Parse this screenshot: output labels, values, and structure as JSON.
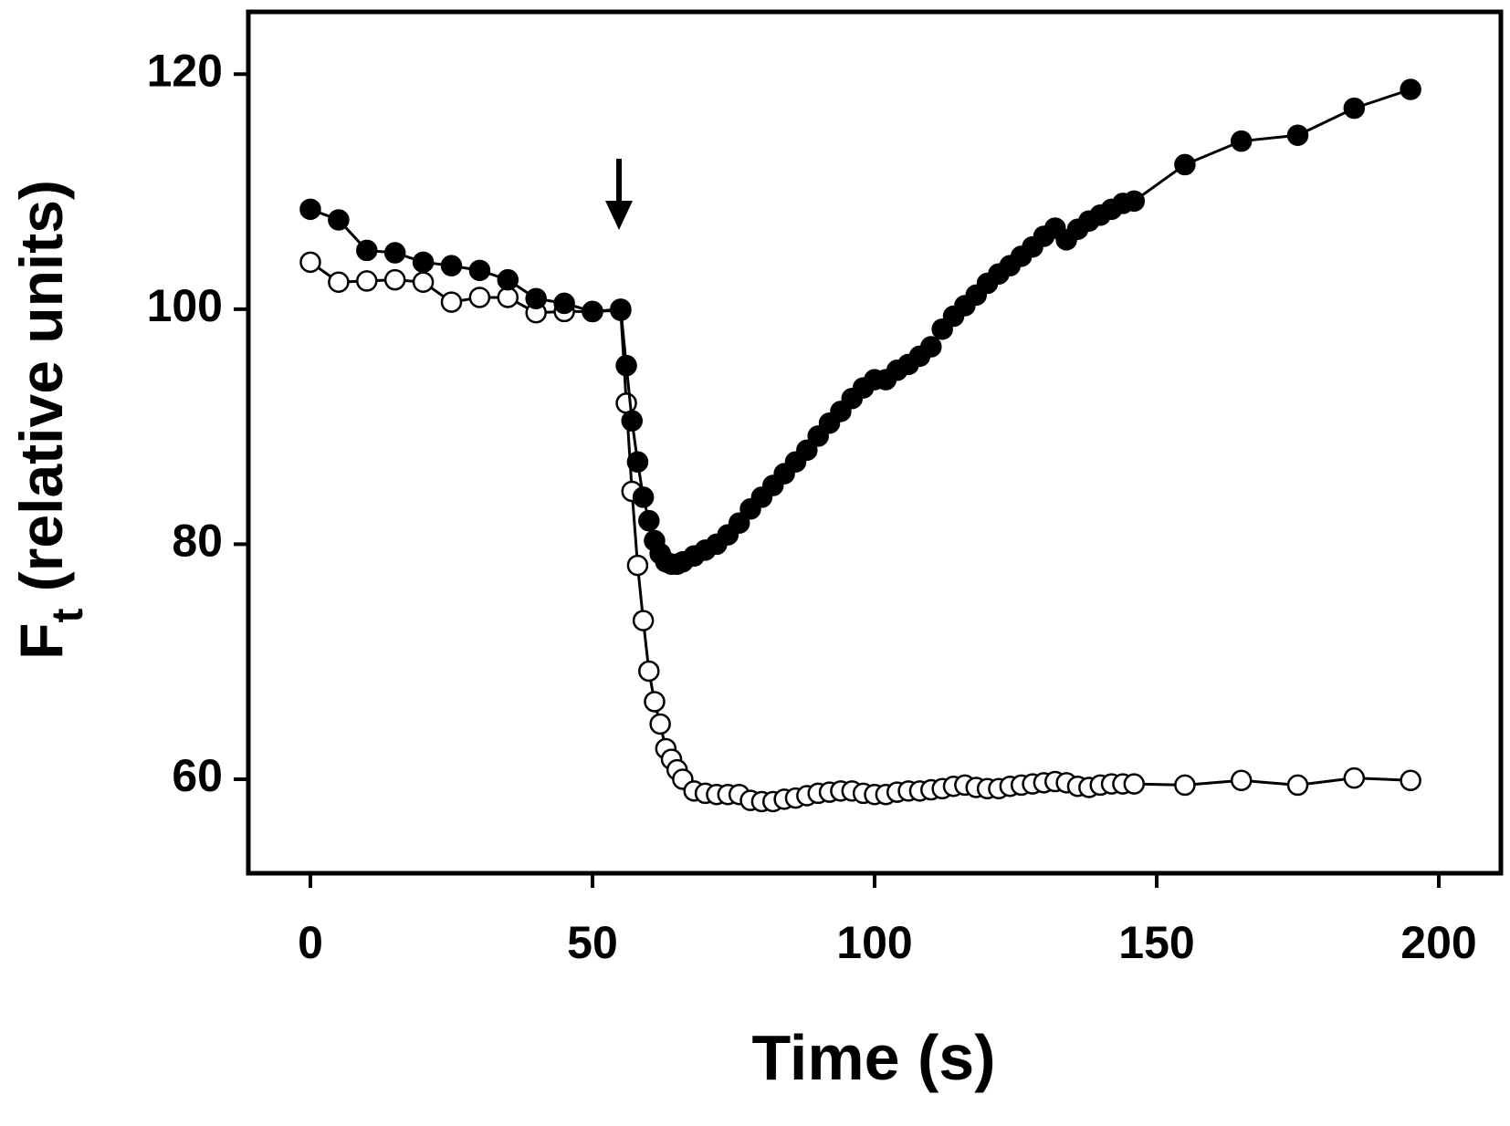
{
  "chart_data": {
    "type": "line",
    "xlabel": "Time (s)",
    "ylabel": "F",
    "ylabel_sub": "t",
    "ylabel_rest": " (relative units)",
    "x": [
      0,
      5,
      10,
      15,
      20,
      25,
      30,
      35,
      40,
      45,
      50,
      55,
      56,
      57,
      58,
      59,
      60,
      61,
      62,
      63,
      64,
      65,
      66,
      68,
      70,
      72,
      74,
      76,
      78,
      80,
      82,
      84,
      86,
      88,
      90,
      92,
      94,
      96,
      98,
      100,
      102,
      104,
      106,
      108,
      110,
      112,
      114,
      116,
      118,
      120,
      122,
      124,
      126,
      128,
      130,
      132,
      134,
      136,
      138,
      140,
      142,
      144,
      146,
      155,
      165,
      175,
      185,
      195
    ],
    "series": [
      {
        "color": "#ffffff",
        "values": [
          104,
          102.3,
          102.4,
          102.5,
          102.3,
          100.6,
          101,
          101,
          99.7,
          99.8,
          99.8,
          99.9,
          92,
          84.5,
          78.2,
          73.5,
          69.2,
          66.6,
          64.7,
          62.6,
          61.7,
          60.8,
          60,
          59,
          58.8,
          58.7,
          58.7,
          58.7,
          58.2,
          58.1,
          58.1,
          58.3,
          58.4,
          58.6,
          58.8,
          58.9,
          59,
          59,
          58.8,
          58.7,
          58.7,
          58.9,
          59,
          59,
          59.1,
          59.2,
          59.4,
          59.5,
          59.3,
          59.2,
          59.2,
          59.4,
          59.5,
          59.6,
          59.7,
          59.8,
          59.7,
          59.4,
          59.3,
          59.5,
          59.6,
          59.6,
          59.6,
          59.5,
          59.9,
          59.5,
          60.1,
          59.9
        ]
      },
      {
        "color": "#000000",
        "values": [
          108.5,
          107.6,
          105,
          104.8,
          104,
          103.7,
          103.3,
          102.5,
          100.9,
          100.5,
          99.8,
          100,
          95.2,
          90.5,
          87,
          84,
          82,
          80.3,
          79.2,
          78.5,
          78.3,
          78.3,
          78.5,
          79,
          79.5,
          80,
          80.8,
          81.8,
          83,
          84,
          85,
          86,
          87,
          88,
          89.2,
          90.3,
          91.3,
          92.4,
          93.3,
          94,
          94,
          94.8,
          95.3,
          96,
          96.8,
          98.3,
          99.4,
          100.3,
          101.2,
          102.2,
          103,
          103.7,
          104.5,
          105.3,
          106.2,
          106.9,
          105.9,
          106.8,
          107.5,
          108,
          108.5,
          109,
          109.2,
          112.3,
          114.3,
          114.8,
          117.1,
          118.7
        ]
      }
    ],
    "xlim": [
      -11,
      211
    ],
    "ylim": [
      52,
      125.3
    ],
    "xticks": [
      0,
      50,
      100,
      150,
      200
    ],
    "yticks": [
      60,
      80,
      100,
      120
    ]
  }
}
